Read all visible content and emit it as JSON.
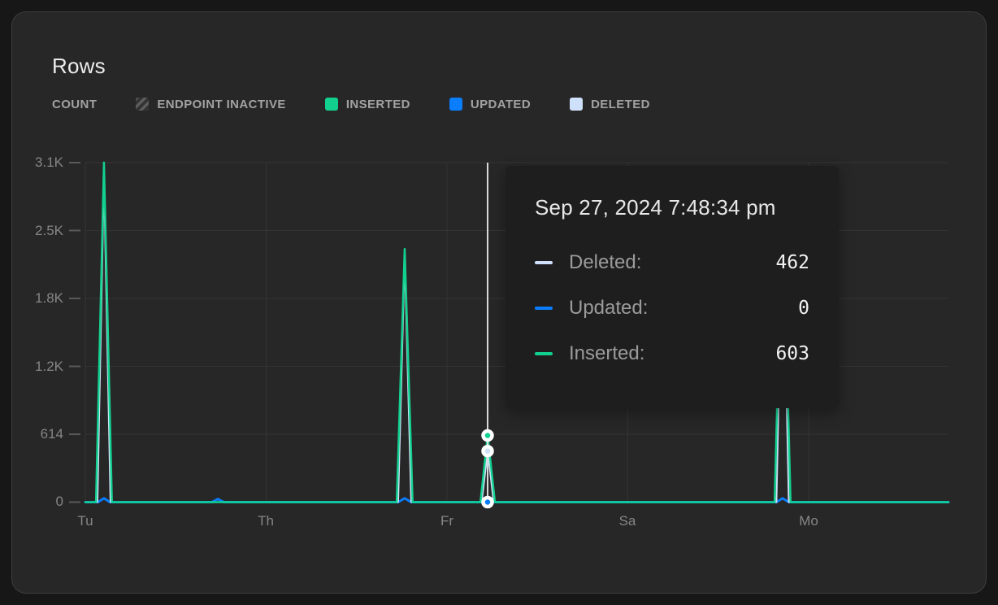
{
  "card": {
    "title": "Rows"
  },
  "legend": {
    "count_label": "COUNT",
    "items": [
      {
        "label": "ENDPOINT INACTIVE",
        "swatch": "hatched",
        "color": "#4f4f4f"
      },
      {
        "label": "INSERTED",
        "swatch": "solid",
        "color": "#12d18f"
      },
      {
        "label": "UPDATED",
        "swatch": "solid",
        "color": "#0b7dff"
      },
      {
        "label": "DELETED",
        "swatch": "solid",
        "color": "#cfe0fa"
      }
    ]
  },
  "tooltip": {
    "title": "Sep 27, 2024 7:48:34 pm",
    "rows": [
      {
        "label": "Deleted:",
        "value": "462",
        "color": "#cfe0fa"
      },
      {
        "label": "Updated:",
        "value": "0",
        "color": "#0b7dff"
      },
      {
        "label": "Inserted:",
        "value": "603",
        "color": "#12d18f"
      }
    ]
  },
  "chart_data": {
    "type": "line",
    "title": "Rows",
    "legend_position": "top",
    "grid": true,
    "x_tick_labels": [
      "Tu",
      "Th",
      "Fr",
      "Sa",
      "Mo"
    ],
    "x_tick_units": [
      0,
      1,
      2,
      3,
      4
    ],
    "xlim": [
      0,
      4.773
    ],
    "y_tick_labels": [
      "3.1K",
      "2.5K",
      "1.8K",
      "1.2K",
      "614",
      "0"
    ],
    "y_tick_values": [
      3071,
      2457,
      1843,
      1228,
      614,
      0
    ],
    "ylim": [
      0,
      3071
    ],
    "series": [
      {
        "name": "Updated",
        "color": "#0b7dff",
        "width": 3,
        "points": [
          [
            0,
            0
          ],
          [
            0.07,
            0
          ],
          [
            0.103,
            35
          ],
          [
            0.136,
            0
          ],
          [
            0.7,
            0
          ],
          [
            0.733,
            28
          ],
          [
            0.766,
            0
          ],
          [
            1.73,
            0
          ],
          [
            1.766,
            35
          ],
          [
            1.802,
            0
          ],
          [
            3.822,
            0
          ],
          [
            3.856,
            35
          ],
          [
            3.89,
            0
          ],
          [
            4.773,
            0
          ]
        ]
      },
      {
        "name": "Deleted",
        "color": "#cfe0fa",
        "width": 2,
        "points": [
          [
            0,
            0
          ],
          [
            0.067,
            0
          ],
          [
            0.103,
            2950
          ],
          [
            0.139,
            0
          ],
          [
            1.73,
            0
          ],
          [
            1.766,
            2220
          ],
          [
            1.802,
            0
          ],
          [
            2.192,
            0
          ],
          [
            2.225,
            462
          ],
          [
            2.258,
            0
          ],
          [
            3.822,
            0
          ],
          [
            3.856,
            2700
          ],
          [
            3.89,
            0
          ],
          [
            4.773,
            0
          ]
        ]
      },
      {
        "name": "Inserted",
        "color": "#12d18f",
        "width": 2.5,
        "points": [
          [
            0,
            0
          ],
          [
            0.059,
            0
          ],
          [
            0.103,
            3072
          ],
          [
            0.147,
            0
          ],
          [
            1.722,
            0
          ],
          [
            1.766,
            2290
          ],
          [
            1.81,
            0
          ],
          [
            2.185,
            0
          ],
          [
            2.225,
            603
          ],
          [
            2.265,
            0
          ],
          [
            3.812,
            0
          ],
          [
            3.856,
            2800
          ],
          [
            3.9,
            0
          ],
          [
            4.773,
            0
          ]
        ]
      }
    ],
    "hover": {
      "x": 2.2247,
      "x_label": "Sep 27, 2024 7:48:34 pm",
      "crosshair_color": "#d9d9d9",
      "points": [
        {
          "series": "Inserted",
          "value": 603,
          "color": "#12d18f"
        },
        {
          "series": "Deleted",
          "value": 462,
          "color": "#cfe0fa"
        },
        {
          "series": "Updated",
          "value": 0,
          "color": "#0b7dff"
        }
      ]
    }
  }
}
